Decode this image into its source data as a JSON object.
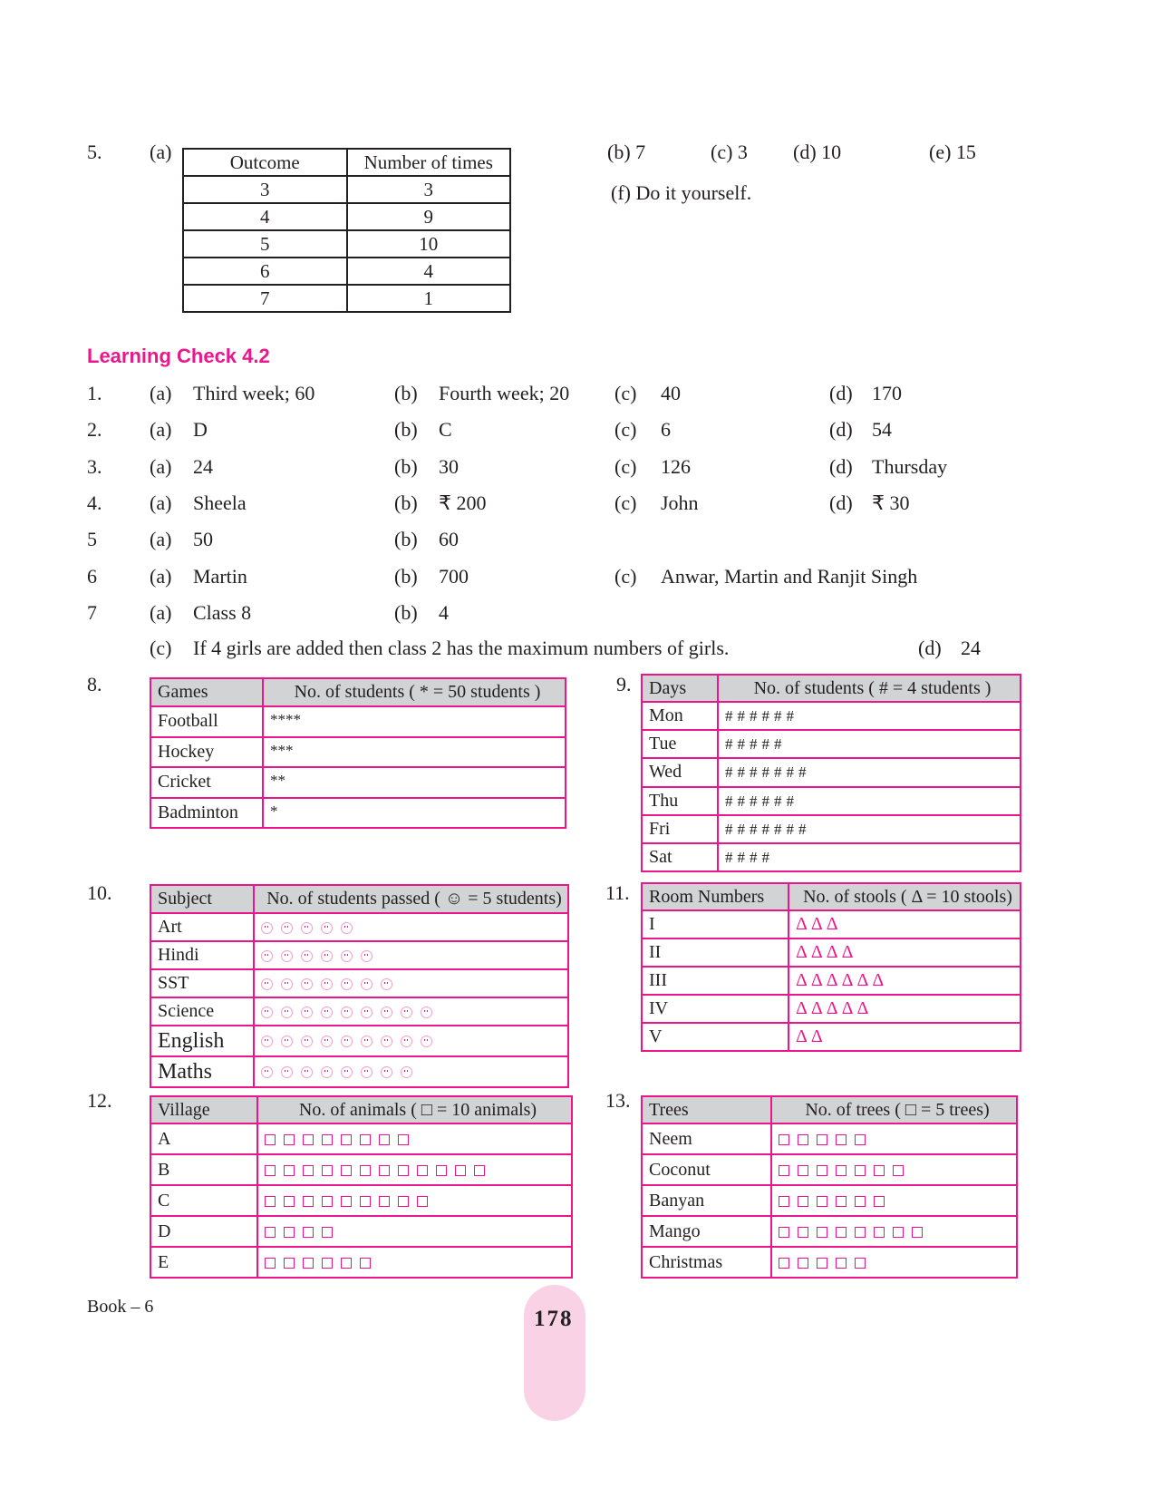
{
  "q5": {
    "number": "5.",
    "part_a": "(a)",
    "table": {
      "headers": [
        "Outcome",
        "Number of times"
      ],
      "rows": [
        [
          "3",
          "3"
        ],
        [
          "4",
          "9"
        ],
        [
          "5",
          "10"
        ],
        [
          "6",
          "4"
        ],
        [
          "7",
          "1"
        ]
      ]
    },
    "answers": [
      {
        "label": "(b)",
        "value": "7"
      },
      {
        "label": "(c)",
        "value": "3"
      },
      {
        "label": "(d)",
        "value": "10"
      },
      {
        "label": "(e)",
        "value": "15"
      },
      {
        "label": "(f)",
        "value": "Do it yourself."
      }
    ]
  },
  "learning_check": {
    "title": "Learning Check 4.2",
    "rows": [
      {
        "num": "1.",
        "parts": [
          [
            "(a)",
            "Third week; 60"
          ],
          [
            "(b)",
            "Fourth week; 20"
          ],
          [
            "(c)",
            "40"
          ],
          [
            "(d)",
            "170"
          ]
        ]
      },
      {
        "num": "2.",
        "parts": [
          [
            "(a)",
            "D"
          ],
          [
            "(b)",
            "C"
          ],
          [
            "(c)",
            "6"
          ],
          [
            "(d)",
            "54"
          ]
        ]
      },
      {
        "num": "3.",
        "parts": [
          [
            "(a)",
            "24"
          ],
          [
            "(b)",
            "30"
          ],
          [
            "(c)",
            "126"
          ],
          [
            "(d)",
            "Thursday"
          ]
        ]
      },
      {
        "num": "4.",
        "parts": [
          [
            "(a)",
            "Sheela"
          ],
          [
            "(b)",
            "₹ 200"
          ],
          [
            "(c)",
            "John"
          ],
          [
            "(d)",
            "₹ 30"
          ]
        ]
      },
      {
        "num": "5",
        "parts": [
          [
            "(a)",
            "50"
          ],
          [
            "(b)",
            "60"
          ]
        ]
      },
      {
        "num": "6",
        "parts": [
          [
            "(a)",
            "Martin"
          ],
          [
            "(b)",
            "700"
          ],
          [
            "(c)",
            "Anwar, Martin and Ranjit Singh"
          ]
        ]
      },
      {
        "num": "7",
        "parts": [
          [
            "(a)",
            "Class 8"
          ],
          [
            "(b)",
            "4"
          ]
        ]
      }
    ],
    "q7c": {
      "label": "(c)",
      "text": "If 4 girls are added then class 2 has the maximum numbers of girls."
    },
    "q7d": {
      "label": "(d)",
      "text": "24"
    }
  },
  "pictographs": [
    {
      "num": "8.",
      "headers": [
        "Games",
        "No. of students ( * = 50 students )"
      ],
      "symbol": "star",
      "rows": [
        [
          "Football",
          4
        ],
        [
          "Hockey",
          3
        ],
        [
          "Cricket",
          2
        ],
        [
          " Badminton",
          1
        ]
      ]
    },
    {
      "num": "9.",
      "headers": [
        "Days",
        "No. of students ( # = 4 students )"
      ],
      "symbol": "hash",
      "rows": [
        [
          "Mon",
          6
        ],
        [
          "Tue",
          5
        ],
        [
          "Wed",
          7
        ],
        [
          "Thu",
          6
        ],
        [
          "Fri",
          7
        ],
        [
          "Sat",
          4
        ]
      ]
    },
    {
      "num": "10.",
      "headers": [
        "Subject",
        "No. of students passed   ( ☺ = 5 students)"
      ],
      "symbol": "smiley",
      "rows": [
        [
          "Art",
          5
        ],
        [
          "Hindi",
          6
        ],
        [
          "SST",
          7
        ],
        [
          "Science",
          9
        ],
        [
          "English",
          9
        ],
        [
          "Maths",
          8
        ]
      ]
    },
    {
      "num": "11.",
      "headers": [
        "Room Numbers",
        "No. of stools  ( Δ = 10 stools)"
      ],
      "symbol": "triangle",
      "rows": [
        [
          "I",
          3
        ],
        [
          "II",
          4
        ],
        [
          "III",
          6
        ],
        [
          "IV",
          5
        ],
        [
          "V",
          2
        ]
      ]
    },
    {
      "num": "12.",
      "headers": [
        "Village",
        "No. of animals  ( □ = 10 animals)"
      ],
      "symbol": "square",
      "rows": [
        [
          "A",
          8
        ],
        [
          "B",
          12
        ],
        [
          "C",
          9
        ],
        [
          "D",
          4
        ],
        [
          "E",
          6
        ]
      ]
    },
    {
      "num": "13.",
      "headers": [
        "Trees",
        "No. of trees ( □ = 5 trees)"
      ],
      "symbol": "square",
      "rows": [
        [
          "Neem",
          5
        ],
        [
          "Coconut",
          7
        ],
        [
          "Banyan",
          6
        ],
        [
          "Mango",
          8
        ],
        [
          "Christmas",
          5
        ]
      ]
    }
  ],
  "footer": {
    "book": "Book – 6",
    "page": "178"
  },
  "colors": {
    "accent": "#ec168c",
    "header_fill": "#d1d3d4",
    "page_pill": "#f9d3e5"
  }
}
